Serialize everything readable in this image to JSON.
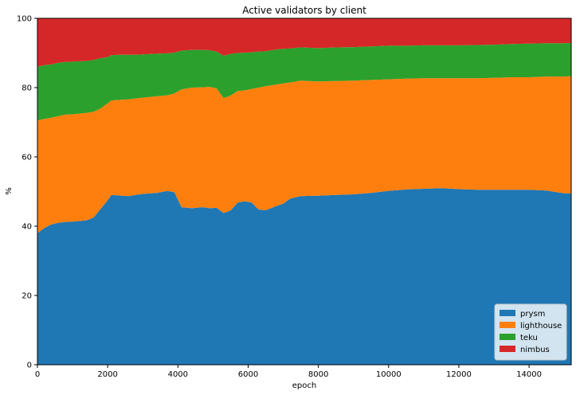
{
  "chart_data": {
    "type": "area",
    "stacked": true,
    "title": "Active validators by client",
    "xlabel": "epoch",
    "ylabel": "%",
    "xlim": [
      0,
      15200
    ],
    "ylim": [
      0,
      100
    ],
    "xticks": [
      0,
      2000,
      4000,
      6000,
      8000,
      10000,
      12000,
      14000
    ],
    "yticks": [
      0,
      20,
      40,
      60,
      80,
      100
    ],
    "grid": false,
    "legend_position": "lower-right",
    "x": [
      0,
      200,
      400,
      600,
      800,
      1000,
      1200,
      1400,
      1600,
      1800,
      2000,
      2100,
      2400,
      2600,
      2800,
      3000,
      3400,
      3700,
      3900,
      4100,
      4400,
      4700,
      4900,
      5100,
      5300,
      5500,
      5700,
      5900,
      6100,
      6300,
      6500,
      6800,
      7000,
      7200,
      7500,
      8000,
      8500,
      9000,
      9500,
      10000,
      10500,
      11000,
      11500,
      12000,
      12500,
      13000,
      13500,
      14000,
      14500,
      15000,
      15200
    ],
    "series": [
      {
        "name": "prysm",
        "color": "#1f77b4",
        "values": [
          38,
          39.5,
          40.5,
          41,
          41.2,
          41.3,
          41.5,
          41.7,
          42.5,
          45,
          47.5,
          49,
          48.8,
          48.7,
          49,
          49.3,
          49.6,
          50.2,
          49.8,
          45.5,
          45.2,
          45.5,
          45.2,
          45.3,
          43.8,
          44.5,
          46.8,
          47.2,
          46.8,
          44.8,
          44.6,
          45.8,
          46.5,
          48,
          48.7,
          48.8,
          49.0,
          49.2,
          49.6,
          50.2,
          50.6,
          50.8,
          51.0,
          50.7,
          50.5,
          50.5,
          50.5,
          50.5,
          50.3,
          49.5,
          49.4
        ]
      },
      {
        "name": "lighthouse",
        "color": "#ff7f0e",
        "values": [
          32.5,
          31.5,
          30.8,
          30.8,
          31,
          31,
          31,
          31,
          30.5,
          29,
          28,
          27.3,
          27.7,
          27.9,
          27.9,
          27.8,
          27.9,
          27.6,
          28.5,
          34,
          34.8,
          34.6,
          35,
          34.5,
          33.2,
          33.2,
          32.2,
          32,
          32.8,
          35.2,
          35.8,
          35.1,
          34.7,
          33.5,
          33.3,
          33.0,
          32.9,
          32.8,
          32.6,
          32.2,
          32.0,
          31.9,
          31.7,
          32.0,
          32.2,
          32.3,
          32.5,
          32.5,
          32.9,
          33.7,
          33.9
        ]
      },
      {
        "name": "teku",
        "color": "#2ca02c",
        "values": [
          15.5,
          15.5,
          15.4,
          15.4,
          15.2,
          15.2,
          15.1,
          15.0,
          15.0,
          14.5,
          13.3,
          13.1,
          13.0,
          12.9,
          12.6,
          12.5,
          12.3,
          12.1,
          11.8,
          11.2,
          10.9,
          10.8,
          10.6,
          10.6,
          12.2,
          12.0,
          11.0,
          10.9,
          10.6,
          10.4,
          10.1,
          10.1,
          10.0,
          9.8,
          9.6,
          9.6,
          9.7,
          9.7,
          9.7,
          9.7,
          9.5,
          9.5,
          9.5,
          9.5,
          9.6,
          9.6,
          9.6,
          9.7,
          9.6,
          9.6,
          9.6
        ]
      },
      {
        "name": "nimbus",
        "color": "#d62728",
        "values": [
          14.0,
          13.5,
          13.3,
          12.8,
          12.6,
          12.5,
          12.4,
          12.3,
          12.0,
          11.5,
          11.2,
          10.6,
          10.5,
          10.5,
          10.5,
          10.4,
          10.2,
          10.1,
          9.9,
          9.3,
          9.1,
          9.1,
          9.2,
          9.6,
          10.8,
          10.3,
          10.0,
          9.9,
          9.8,
          9.6,
          9.5,
          9.0,
          8.8,
          8.7,
          8.4,
          8.6,
          8.4,
          8.3,
          8.1,
          7.9,
          7.9,
          7.8,
          7.8,
          7.8,
          7.7,
          7.6,
          7.4,
          7.3,
          7.2,
          7.2,
          7.1
        ]
      }
    ]
  }
}
